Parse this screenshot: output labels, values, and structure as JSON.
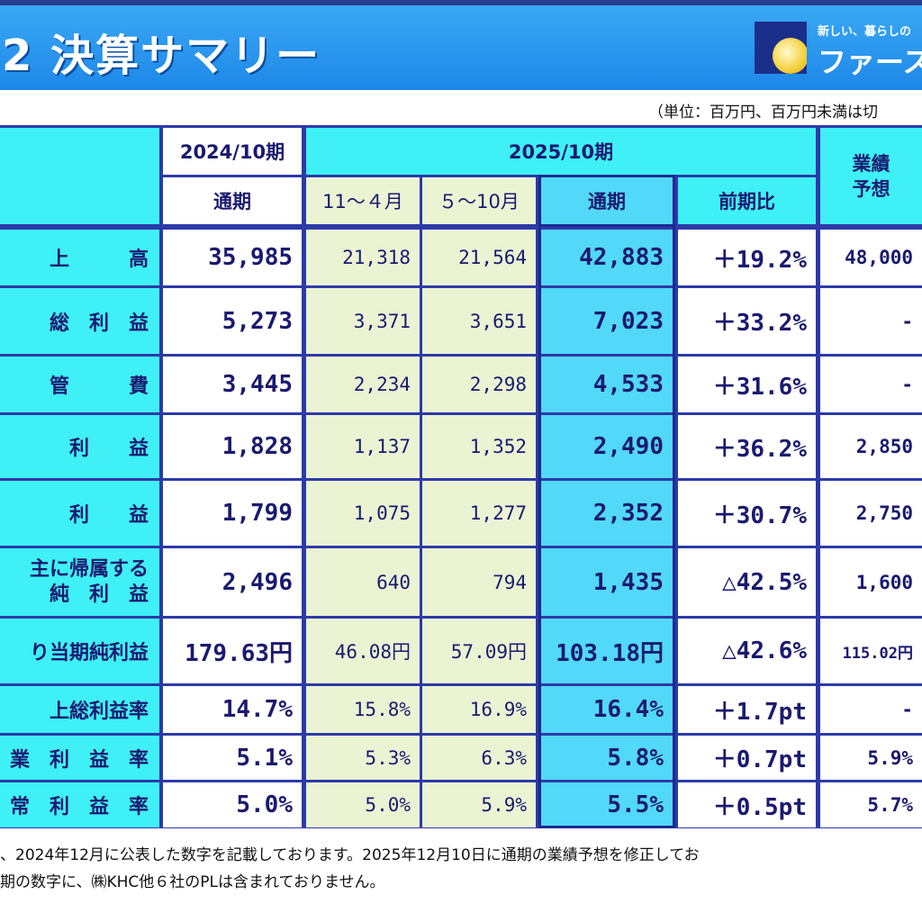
{
  "title": "2  決算サマリー",
  "logo": {
    "tagline": "新しい、暮らしの",
    "name": "ファース"
  },
  "unit_note": "（単位：百万円、百万円未満は切",
  "columns": {
    "prev_period": "2024/10期",
    "prev_full": "通期",
    "cur_period": "2025/10期",
    "cur_h1": "11～４月",
    "cur_h2": "５～10月",
    "cur_full": "通期",
    "yoy": "前期比",
    "forecast": "業績\n予想"
  },
  "rows": [
    {
      "label": "上　　　高",
      "prev": "35,985",
      "h1": "21,318",
      "h2": "21,564",
      "full": "42,883",
      "yoy": "＋19.2%",
      "fc": "48,000"
    },
    {
      "label": "総　利　益",
      "prev": "5,273",
      "h1": "3,371",
      "h2": "3,651",
      "full": "7,023",
      "yoy": "＋33.2%",
      "fc": "-"
    },
    {
      "label": "管　　　費",
      "prev": "3,445",
      "h1": "2,234",
      "h2": "2,298",
      "full": "4,533",
      "yoy": "＋31.6%",
      "fc": "-"
    },
    {
      "label": "利　　益",
      "prev": "1,828",
      "h1": "1,137",
      "h2": "1,352",
      "full": "2,490",
      "yoy": "＋36.2%",
      "fc": "2,850"
    },
    {
      "label": "利　　益",
      "prev": "1,799",
      "h1": "1,075",
      "h2": "1,277",
      "full": "2,352",
      "yoy": "＋30.7%",
      "fc": "2,750"
    },
    {
      "label": "主に帰属する",
      "label2": "純　利　益",
      "prev": "2,496",
      "h1": "640",
      "h2": "794",
      "full": "1,435",
      "yoy": "△42.5%",
      "fc": "1,600"
    },
    {
      "label": "り当期純利益",
      "prev": "179.63円",
      "h1": "46.08円",
      "h2": "57.09円",
      "full": "103.18円",
      "yoy": "△42.6%",
      "fc": "115.02円"
    },
    {
      "label": "上総利益率",
      "prev": "14.7%",
      "h1": "15.8%",
      "h2": "16.9%",
      "full": "16.4%",
      "yoy": "＋1.7pt",
      "fc": "-"
    },
    {
      "label": "業　利　益　率",
      "prev": "5.1%",
      "h1": "5.3%",
      "h2": "6.3%",
      "full": "5.8%",
      "yoy": "＋0.7pt",
      "fc": "5.9%"
    },
    {
      "label": "常　利　益　率",
      "prev": "5.0%",
      "h1": "5.0%",
      "h2": "5.9%",
      "full": "5.5%",
      "yoy": "＋0.5pt",
      "fc": "5.7%"
    }
  ],
  "footnotes": [
    "、2024年12月に公表した数字を記載しております。2025年12月10日に通期の業績予想を修正してお",
    "期の数字に、㈱KHC他６社のPLは含まれておりません。"
  ],
  "colors": {
    "header_blue": "#1e88e8",
    "cyan": "#3ff0f6",
    "light_green": "#eaf4d3",
    "border_navy": "#2d3aa8"
  }
}
